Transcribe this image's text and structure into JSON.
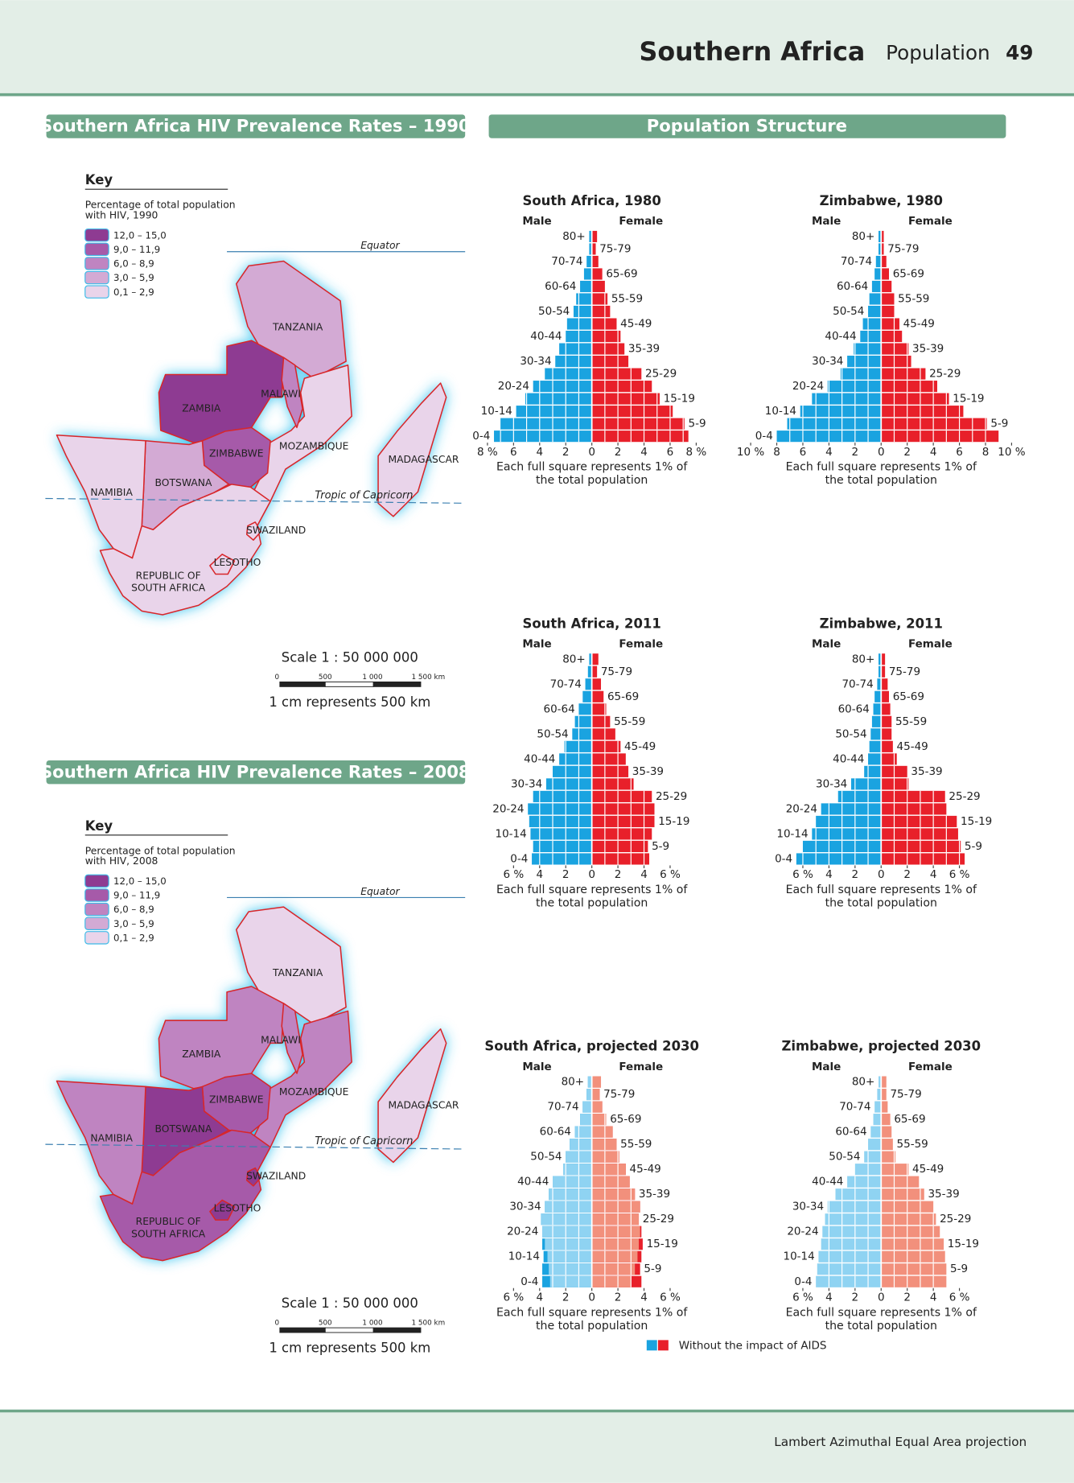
{
  "header": {
    "title": "Southern Africa",
    "section": "Population",
    "page": "49"
  },
  "maps": [
    {
      "title": "Southern Africa HIV Prevalence Rates – 1990",
      "key": {
        "title": "Key",
        "note": [
          "Percentage of total population",
          "with HIV, 1990"
        ],
        "classes": [
          {
            "label": "12,0 – 15,0",
            "color": "#8e3b92"
          },
          {
            "label": "9,0 – 11,9",
            "color": "#a65aa9"
          },
          {
            "label": "6,0 – 8,9",
            "color": "#bf84c1"
          },
          {
            "label": "3,0 – 5,9",
            "color": "#d3aad4"
          },
          {
            "label": "0,1 – 2,9",
            "color": "#e9d4ea"
          }
        ]
      },
      "lines": {
        "equator": "Equator",
        "tropic": "Tropic of Capricorn"
      },
      "countries": [
        {
          "name": "TANZANIA",
          "class": 3
        },
        {
          "name": "ZAMBIA",
          "class": 0
        },
        {
          "name": "MOZAMBIQUE",
          "class": 4
        },
        {
          "name": "MALAWI",
          "class": 2
        },
        {
          "name": "ZIMBABWE",
          "class": 1
        },
        {
          "name": "BOTSWANA",
          "class": 3
        },
        {
          "name": "NAMIBIA",
          "class": 4
        },
        {
          "name": [
            "REPUBLIC OF",
            "SOUTH AFRICA"
          ],
          "class": 4
        },
        {
          "name": "SWAZILAND",
          "class": 4
        },
        {
          "name": "LESOTHO",
          "class": 4
        },
        {
          "name": "MADAGASCAR",
          "class": 4
        }
      ],
      "scale": {
        "title": "Scale 1 : 50 000 000",
        "ticks": [
          "0",
          "500",
          "1 000",
          "1 500 km"
        ],
        "note": "1 cm represents 500 km"
      }
    },
    {
      "title": "Southern Africa HIV Prevalence Rates – 2008",
      "key": {
        "title": "Key",
        "note": [
          "Percentage of total population",
          "with HIV, 2008"
        ],
        "classes": [
          {
            "label": "12,0 – 15,0",
            "color": "#8e3b92"
          },
          {
            "label": "9,0 – 11,9",
            "color": "#a65aa9"
          },
          {
            "label": "6,0 – 8,9",
            "color": "#bf84c1"
          },
          {
            "label": "3,0 – 5,9",
            "color": "#d3aad4"
          },
          {
            "label": "0,1 – 2,9",
            "color": "#e9d4ea"
          }
        ]
      },
      "lines": {
        "equator": "Equator",
        "tropic": "Tropic of Capricorn"
      },
      "countries": [
        {
          "name": "TANZANIA",
          "class": 4
        },
        {
          "name": "ZAMBIA",
          "class": 2
        },
        {
          "name": "MOZAMBIQUE",
          "class": 2
        },
        {
          "name": "MALAWI",
          "class": 2
        },
        {
          "name": "ZIMBABWE",
          "class": 1
        },
        {
          "name": "BOTSWANA",
          "class": 0
        },
        {
          "name": "NAMIBIA",
          "class": 2
        },
        {
          "name": [
            "REPUBLIC OF",
            "SOUTH AFRICA"
          ],
          "class": 1
        },
        {
          "name": "SWAZILAND",
          "class": 0
        },
        {
          "name": "LESOTHO",
          "class": 0
        },
        {
          "name": "MADAGASCAR",
          "class": 4
        }
      ],
      "scale": {
        "title": "Scale 1 : 50 000 000",
        "ticks": [
          "0",
          "500",
          "1 000",
          "1 500 km"
        ],
        "note": "1 cm represents 500 km"
      }
    }
  ],
  "population_structure": {
    "title": "Population Structure",
    "aids_legend": {
      "label": "Without the impact of AIDS",
      "colors": [
        "#1aa3e0",
        "#e8202a"
      ]
    }
  },
  "chart_data": [
    {
      "type": "pyramid",
      "title": "South Africa, 1980",
      "categories": [
        "0-4",
        "5-9",
        "10-14",
        "15-19",
        "20-24",
        "25-29",
        "30-34",
        "35-39",
        "40-44",
        "45-49",
        "50-54",
        "55-59",
        "60-64",
        "65-69",
        "70-74",
        "75-79",
        "80+"
      ],
      "series": [
        {
          "name": "Male",
          "color": "#1aa3e0",
          "values": [
            7.5,
            7.0,
            5.8,
            5.1,
            4.5,
            3.6,
            2.8,
            2.5,
            2.0,
            1.9,
            1.4,
            1.2,
            0.9,
            0.6,
            0.4,
            0.2,
            0.2
          ]
        },
        {
          "name": "Female",
          "color": "#e8202a",
          "values": [
            7.4,
            7.1,
            6.2,
            5.2,
            4.6,
            3.8,
            2.8,
            2.5,
            2.2,
            1.9,
            1.4,
            1.2,
            1.0,
            0.8,
            0.5,
            0.3,
            0.4
          ]
        }
      ],
      "xlim": [
        0,
        8
      ],
      "xticks": [
        {
          "value": 8,
          "label": "8 %"
        },
        6,
        4,
        2,
        0,
        2,
        4,
        6,
        {
          "value": 8,
          "label": "8 %"
        }
      ],
      "note": [
        "Each full square represents 1% of",
        "the total population"
      ]
    },
    {
      "type": "pyramid",
      "title": "Zimbabwe, 1980",
      "categories": [
        "0-4",
        "5-9",
        "10-14",
        "15-19",
        "20-24",
        "25-29",
        "30-34",
        "35-39",
        "40-44",
        "45-49",
        "50-54",
        "55-59",
        "60-64",
        "65-69",
        "70-74",
        "75-79",
        "80+"
      ],
      "series": [
        {
          "name": "Male",
          "color": "#1aa3e0",
          "values": [
            8.0,
            7.2,
            6.2,
            5.3,
            4.1,
            3.1,
            2.6,
            2.1,
            1.6,
            1.4,
            1.0,
            0.9,
            0.7,
            0.5,
            0.4,
            0.2,
            0.2
          ]
        },
        {
          "name": "Female",
          "color": "#e8202a",
          "values": [
            9.0,
            8.1,
            6.3,
            5.2,
            4.3,
            3.4,
            2.3,
            2.1,
            1.6,
            1.4,
            1.0,
            1.0,
            0.8,
            0.6,
            0.4,
            0.2,
            0.2
          ]
        }
      ],
      "xlim": [
        0,
        10
      ],
      "xticks": [
        {
          "value": 10,
          "label": "10 %"
        },
        8,
        6,
        4,
        2,
        0,
        2,
        4,
        6,
        8,
        {
          "value": 10,
          "label": "10 %"
        }
      ],
      "note": [
        "Each full square represents 1% of",
        "the total population"
      ]
    },
    {
      "type": "pyramid",
      "title": "South Africa, 2011",
      "categories": [
        "0-4",
        "5-9",
        "10-14",
        "15-19",
        "20-24",
        "25-29",
        "30-34",
        "35-39",
        "40-44",
        "45-49",
        "50-54",
        "55-59",
        "60-64",
        "65-69",
        "70-74",
        "75-79",
        "80+"
      ],
      "series": [
        {
          "name": "Male",
          "color": "#1aa3e0",
          "values": [
            4.6,
            4.5,
            4.7,
            4.8,
            4.9,
            4.5,
            3.5,
            3.0,
            2.5,
            2.1,
            1.5,
            1.3,
            1.0,
            0.7,
            0.5,
            0.3,
            0.2
          ]
        },
        {
          "name": "Female",
          "color": "#e8202a",
          "values": [
            4.4,
            4.3,
            4.6,
            4.8,
            4.8,
            4.6,
            3.2,
            2.8,
            2.6,
            2.2,
            1.8,
            1.4,
            1.1,
            0.9,
            0.7,
            0.4,
            0.5
          ]
        }
      ],
      "xlim": [
        0,
        6
      ],
      "xticks": [
        {
          "value": 6,
          "label": "6 %"
        },
        4,
        2,
        0,
        2,
        4,
        {
          "value": 6,
          "label": "6 %"
        }
      ],
      "note": [
        "Each full square represents 1% of",
        "the total population"
      ]
    },
    {
      "type": "pyramid",
      "title": "Zimbabwe, 2011",
      "categories": [
        "0-4",
        "5-9",
        "10-14",
        "15-19",
        "20-24",
        "25-29",
        "30-34",
        "35-39",
        "40-44",
        "45-49",
        "50-54",
        "55-59",
        "60-64",
        "65-69",
        "70-74",
        "75-79",
        "80+"
      ],
      "series": [
        {
          "name": "Male",
          "color": "#1aa3e0",
          "values": [
            6.5,
            6.0,
            5.3,
            5.0,
            4.6,
            3.3,
            2.3,
            1.3,
            1.0,
            0.9,
            0.8,
            0.7,
            0.6,
            0.5,
            0.3,
            0.2,
            0.2
          ]
        },
        {
          "name": "Female",
          "color": "#e8202a",
          "values": [
            6.4,
            6.1,
            5.9,
            5.8,
            5.0,
            4.9,
            2.1,
            2.0,
            1.2,
            0.9,
            0.8,
            0.8,
            0.7,
            0.6,
            0.5,
            0.3,
            0.3
          ]
        }
      ],
      "xlim": [
        0,
        6
      ],
      "xticks": [
        {
          "value": 6,
          "label": "6 %"
        },
        4,
        2,
        0,
        2,
        4,
        {
          "value": 6,
          "label": "6 %"
        }
      ],
      "note": [
        "Each full square represents 1% of",
        "the total population"
      ]
    },
    {
      "type": "pyramid",
      "title": "South Africa, projected 2030",
      "categories": [
        "0-4",
        "5-9",
        "10-14",
        "15-19",
        "20-24",
        "25-29",
        "30-34",
        "35-39",
        "40-44",
        "45-49",
        "50-54",
        "55-59",
        "60-64",
        "65-69",
        "70-74",
        "75-79",
        "80+"
      ],
      "series": [
        {
          "name": "Male",
          "color": "#8fd3f2",
          "without_aids_color": "#1aa3e0",
          "values": [
            3.2,
            3.3,
            3.4,
            3.6,
            3.8,
            3.9,
            3.6,
            3.3,
            3.0,
            2.2,
            2.0,
            1.7,
            1.3,
            0.9,
            0.7,
            0.4,
            0.3
          ],
          "values_without_aids": [
            3.8,
            3.8,
            3.7,
            3.8,
            3.8,
            3.9,
            3.6,
            3.3,
            3.0,
            2.2,
            2.0,
            1.7,
            1.3,
            0.9,
            0.7,
            0.4,
            0.3
          ]
        },
        {
          "name": "Female",
          "color": "#f2907c",
          "without_aids_color": "#e8202a",
          "values": [
            3.0,
            3.3,
            3.5,
            3.6,
            3.7,
            3.6,
            3.7,
            3.3,
            2.9,
            2.6,
            2.1,
            1.9,
            1.6,
            1.1,
            0.8,
            0.6,
            0.7
          ],
          "values_without_aids": [
            3.8,
            3.7,
            3.8,
            3.9,
            3.8,
            3.6,
            3.7,
            3.3,
            2.9,
            2.6,
            2.1,
            1.9,
            1.6,
            1.1,
            0.8,
            0.6,
            0.7
          ]
        }
      ],
      "xlim": [
        0,
        6
      ],
      "xticks": [
        {
          "value": 6,
          "label": "6 %"
        },
        4,
        2,
        0,
        2,
        4,
        {
          "value": 6,
          "label": "6 %"
        }
      ],
      "note": [
        "Each full square represents 1% of",
        "the total population"
      ]
    },
    {
      "type": "pyramid",
      "title": "Zimbabwe, projected 2030",
      "categories": [
        "0-4",
        "5-9",
        "10-14",
        "15-19",
        "20-24",
        "25-29",
        "30-34",
        "35-39",
        "40-44",
        "45-49",
        "50-54",
        "55-59",
        "60-64",
        "65-69",
        "70-74",
        "75-79",
        "80+"
      ],
      "series": [
        {
          "name": "Male",
          "color": "#8fd3f2",
          "values": [
            5.0,
            4.9,
            4.8,
            4.6,
            4.5,
            4.3,
            4.1,
            3.5,
            2.6,
            2.0,
            1.3,
            1.0,
            0.8,
            0.6,
            0.5,
            0.3,
            0.2
          ]
        },
        {
          "name": "Female",
          "color": "#f2907c",
          "values": [
            5.0,
            5.0,
            4.9,
            4.8,
            4.5,
            4.2,
            4.0,
            3.3,
            2.9,
            2.1,
            1.1,
            0.9,
            0.8,
            0.7,
            0.5,
            0.4,
            0.4
          ]
        }
      ],
      "xlim": [
        0,
        6
      ],
      "xticks": [
        {
          "value": 6,
          "label": "6 %"
        },
        4,
        2,
        0,
        2,
        4,
        {
          "value": 6,
          "label": "6 %"
        }
      ],
      "note": [
        "Each full square represents 1% of",
        "the total population"
      ]
    }
  ],
  "footer": {
    "note": "Lambert Azimuthal Equal Area projection"
  }
}
